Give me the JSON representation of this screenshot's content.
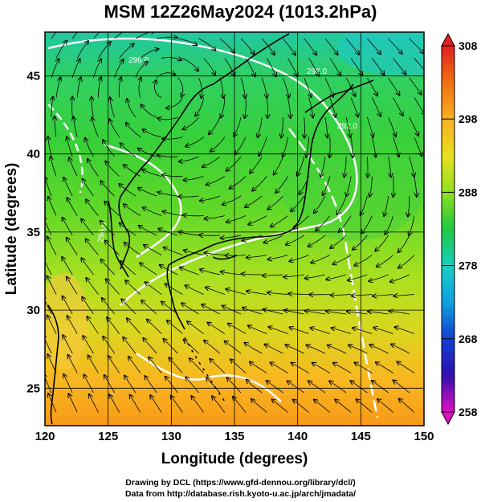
{
  "title": "MSM 12Z26May2024 (1013.2hPa)",
  "axes": {
    "xlabel": "Longitude (degrees)",
    "ylabel": "Latitude  (degrees)",
    "xticks": [
      "120",
      "125",
      "130",
      "135",
      "140",
      "145",
      "150"
    ],
    "yticks": [
      "25",
      "30",
      "35",
      "40",
      "45"
    ]
  },
  "colorbar": {
    "ticks": [
      "308",
      "298",
      "288",
      "278",
      "268",
      "258"
    ],
    "range": [
      258,
      308
    ]
  },
  "contour_labels": [
    "296.0",
    "296.0",
    "296.0",
    "292.0"
  ],
  "credits": {
    "line1": "Drawing by DCL (https://www.gfd-dennou.org/library/dcl/)",
    "line2": "Data from http://database.rish.kyoto-u.ac.jp/arch/jmadata/"
  },
  "colors": {
    "warm": "#f7a020",
    "mid": "#a8e020",
    "green": "#30d030",
    "cool": "#18c8c8",
    "contour": "#ffffff",
    "streamline": "#000000"
  }
}
